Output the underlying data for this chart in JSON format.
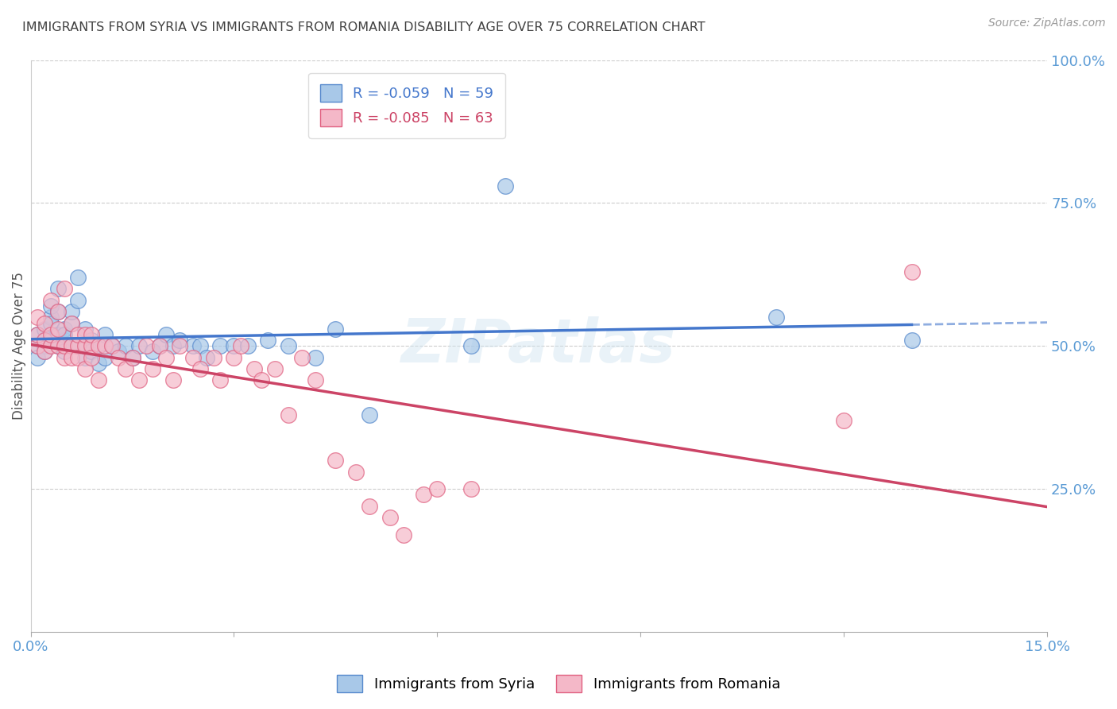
{
  "title": "IMMIGRANTS FROM SYRIA VS IMMIGRANTS FROM ROMANIA DISABILITY AGE OVER 75 CORRELATION CHART",
  "source": "Source: ZipAtlas.com",
  "ylabel": "Disability Age Over 75",
  "xmin": 0.0,
  "xmax": 0.15,
  "ymin": 0.0,
  "ymax": 1.0,
  "yticks": [
    0.0,
    0.25,
    0.5,
    0.75,
    1.0
  ],
  "xticks": [
    0.0,
    0.03,
    0.06,
    0.09,
    0.12,
    0.15
  ],
  "legend_syria": "R = -0.059   N = 59",
  "legend_romania": "R = -0.085   N = 63",
  "color_syria": "#a8c8e8",
  "color_romania": "#f4b8c8",
  "color_edge_syria": "#5588cc",
  "color_edge_romania": "#e06080",
  "color_trend_syria": "#4477cc",
  "color_trend_romania": "#cc4466",
  "color_axis_text": "#5b9bd5",
  "color_title": "#404040",
  "watermark": "ZIPatlas",
  "syria_x": [
    0.001,
    0.001,
    0.001,
    0.002,
    0.002,
    0.002,
    0.002,
    0.003,
    0.003,
    0.003,
    0.003,
    0.004,
    0.004,
    0.004,
    0.004,
    0.005,
    0.005,
    0.005,
    0.005,
    0.006,
    0.006,
    0.006,
    0.007,
    0.007,
    0.007,
    0.008,
    0.008,
    0.008,
    0.009,
    0.009,
    0.01,
    0.01,
    0.011,
    0.011,
    0.012,
    0.013,
    0.014,
    0.015,
    0.016,
    0.018,
    0.019,
    0.02,
    0.021,
    0.022,
    0.024,
    0.025,
    0.026,
    0.028,
    0.03,
    0.032,
    0.035,
    0.038,
    0.042,
    0.045,
    0.05,
    0.065,
    0.07,
    0.11,
    0.13
  ],
  "syria_y": [
    0.5,
    0.52,
    0.48,
    0.53,
    0.51,
    0.5,
    0.49,
    0.55,
    0.57,
    0.51,
    0.54,
    0.52,
    0.5,
    0.6,
    0.56,
    0.51,
    0.53,
    0.49,
    0.52,
    0.54,
    0.56,
    0.5,
    0.58,
    0.62,
    0.5,
    0.53,
    0.5,
    0.48,
    0.51,
    0.49,
    0.5,
    0.47,
    0.52,
    0.48,
    0.5,
    0.49,
    0.5,
    0.48,
    0.5,
    0.49,
    0.5,
    0.52,
    0.5,
    0.51,
    0.5,
    0.5,
    0.48,
    0.5,
    0.5,
    0.5,
    0.51,
    0.5,
    0.48,
    0.53,
    0.38,
    0.5,
    0.78,
    0.55,
    0.51
  ],
  "romania_x": [
    0.001,
    0.001,
    0.001,
    0.002,
    0.002,
    0.002,
    0.003,
    0.003,
    0.003,
    0.004,
    0.004,
    0.004,
    0.005,
    0.005,
    0.005,
    0.006,
    0.006,
    0.006,
    0.007,
    0.007,
    0.007,
    0.008,
    0.008,
    0.008,
    0.009,
    0.009,
    0.009,
    0.01,
    0.01,
    0.011,
    0.012,
    0.013,
    0.014,
    0.015,
    0.016,
    0.017,
    0.018,
    0.019,
    0.02,
    0.021,
    0.022,
    0.024,
    0.025,
    0.027,
    0.028,
    0.03,
    0.031,
    0.033,
    0.034,
    0.036,
    0.038,
    0.04,
    0.042,
    0.045,
    0.048,
    0.05,
    0.053,
    0.055,
    0.058,
    0.06,
    0.065,
    0.12,
    0.13
  ],
  "romania_y": [
    0.5,
    0.52,
    0.55,
    0.49,
    0.51,
    0.54,
    0.5,
    0.52,
    0.58,
    0.5,
    0.53,
    0.56,
    0.48,
    0.5,
    0.6,
    0.5,
    0.54,
    0.48,
    0.5,
    0.52,
    0.48,
    0.5,
    0.52,
    0.46,
    0.5,
    0.52,
    0.48,
    0.5,
    0.44,
    0.5,
    0.5,
    0.48,
    0.46,
    0.48,
    0.44,
    0.5,
    0.46,
    0.5,
    0.48,
    0.44,
    0.5,
    0.48,
    0.46,
    0.48,
    0.44,
    0.48,
    0.5,
    0.46,
    0.44,
    0.46,
    0.38,
    0.48,
    0.44,
    0.3,
    0.28,
    0.22,
    0.2,
    0.17,
    0.24,
    0.25,
    0.25,
    0.37,
    0.63
  ]
}
